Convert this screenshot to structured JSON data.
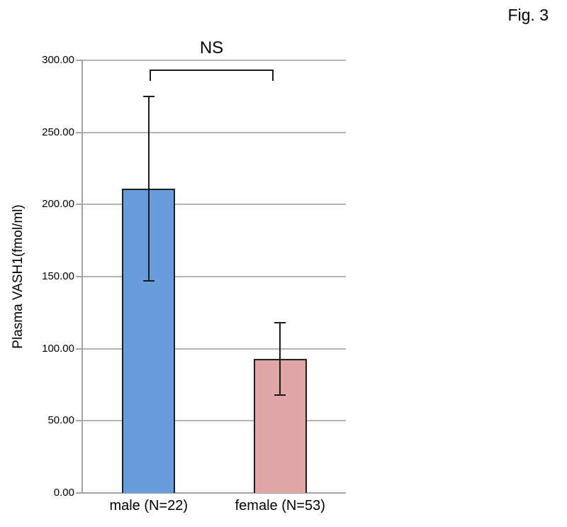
{
  "figure": {
    "label": "Fig. 3"
  },
  "chart_data": {
    "type": "bar",
    "title": "",
    "categories": [
      "male (N=22)",
      "female (N=53)"
    ],
    "values": [
      211,
      93
    ],
    "errors": [
      64,
      25
    ],
    "bar_colors": [
      "#689DDB",
      "#E1A6A6"
    ],
    "bar_border_color": "#1F1F1F",
    "xlabel": "",
    "ylabel": "Plasma VASH1(fmol/ml)",
    "ylim": [
      0,
      300
    ],
    "ytick_step": 50,
    "ytick_labels": [
      "0.00",
      "50.00",
      "100.00",
      "150.00",
      "200.00",
      "250.00",
      "300.00"
    ],
    "grid": true,
    "gridline_color": "#B3B3B3",
    "legend": "none",
    "annotation": {
      "text": "NS",
      "kind": "significance-bracket",
      "between": [
        "male (N=22)",
        "female (N=53)"
      ]
    }
  }
}
